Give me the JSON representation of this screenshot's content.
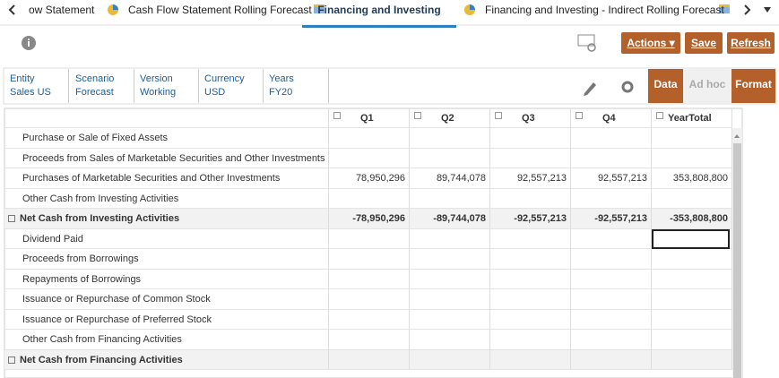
{
  "tabs": [
    "ow Statement",
    "Cash Flow Statement Rolling Forecast",
    "Financing and Investing",
    "Financing and Investing - Indirect Rolling Forecast"
  ],
  "active_tab": 2,
  "toolbar": {
    "actions": "Actions",
    "save": "Save",
    "refresh": "Refresh"
  },
  "pov": [
    {
      "label": "Entity",
      "value": "Sales US"
    },
    {
      "label": "Scenario",
      "value": "Forecast"
    },
    {
      "label": "Version",
      "value": "Working"
    },
    {
      "label": "Currency",
      "value": "USD"
    },
    {
      "label": "Years",
      "value": "FY20"
    }
  ],
  "modes": [
    "Data",
    "Ad hoc",
    "Format"
  ],
  "table": {
    "columns": [
      "Q1",
      "Q2",
      "Q3",
      "Q4",
      "YearTotal"
    ],
    "rows": [
      {
        "label": "Purchase or Sale of Fixed Assets",
        "cells": [
          null,
          null,
          null,
          null,
          null
        ]
      },
      {
        "label": "Proceeds from Sales of Marketable Securities and Other Investments",
        "cells": [
          null,
          null,
          null,
          null,
          null
        ]
      },
      {
        "label": "Purchases of Marketable Securities and Other Investments",
        "cells": [
          "78,950,296",
          "89,744,078",
          "92,557,213",
          "92,557,213",
          "353,808,800"
        ]
      },
      {
        "label": "Other Cash from Investing Activities",
        "cells": [
          null,
          null,
          null,
          null,
          null
        ]
      },
      {
        "label": "Net Cash from Investing Activities",
        "total": true,
        "cells": [
          "-78,950,296",
          "-89,744,078",
          "-92,557,213",
          "-92,557,213",
          "-353,808,800"
        ]
      },
      {
        "label": "Dividend Paid",
        "cells": [
          null,
          null,
          null,
          null,
          null
        ]
      },
      {
        "label": "Proceeds from Borrowings",
        "cells": [
          null,
          null,
          null,
          null,
          null
        ]
      },
      {
        "label": "Repayments of Borrowings",
        "cells": [
          null,
          null,
          null,
          null,
          null
        ]
      },
      {
        "label": "Issuance or Repurchase of Common Stock",
        "cells": [
          null,
          null,
          null,
          null,
          null
        ]
      },
      {
        "label": "Issuance or Repurchase of Preferred Stock",
        "cells": [
          null,
          null,
          null,
          null,
          null
        ]
      },
      {
        "label": "Other Cash from Financing Activities",
        "cells": [
          null,
          null,
          null,
          null,
          null
        ]
      },
      {
        "label": "Net Cash from Financing Activities",
        "total": true,
        "cells": [
          null,
          null,
          null,
          null,
          null
        ]
      }
    ]
  }
}
